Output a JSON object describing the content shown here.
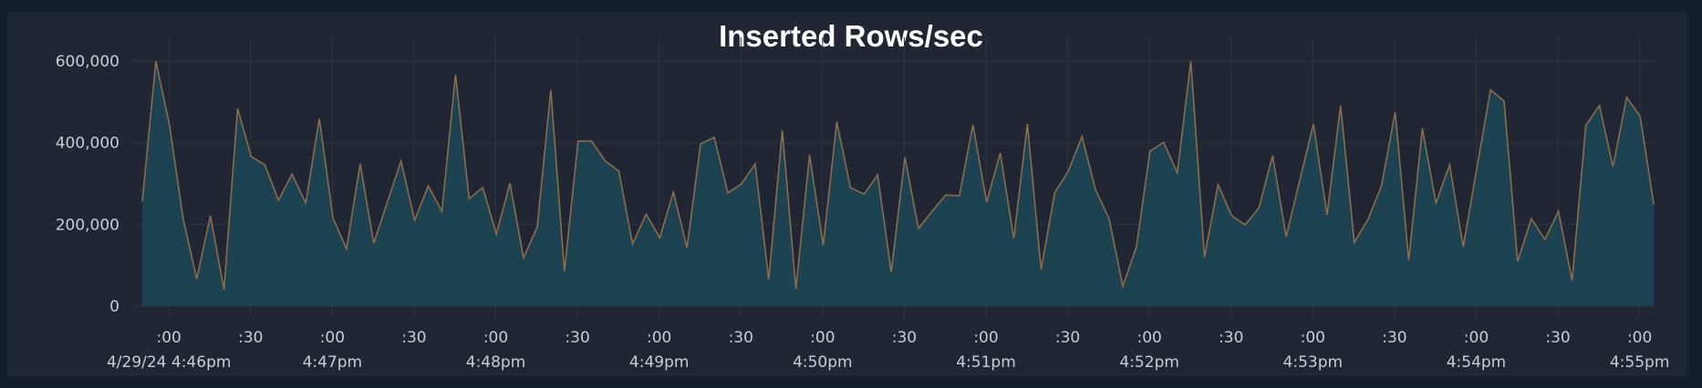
{
  "chart_data": {
    "type": "area",
    "title": "Inserted Rows/sec",
    "xlabel": "",
    "ylabel": "",
    "ylim": [
      0,
      600000
    ],
    "grid": true,
    "legend": "none",
    "y_ticks": [
      "0",
      "200,000",
      "400,000",
      "600,000"
    ],
    "y_tick_values": [
      0,
      200000,
      400000,
      600000
    ],
    "x_ticks": [
      {
        "label": ":00",
        "sub": "4/29/24 4:46pm"
      },
      {
        "label": ":30",
        "sub": ""
      },
      {
        "label": ":00",
        "sub": "4:47pm"
      },
      {
        "label": ":30",
        "sub": ""
      },
      {
        "label": ":00",
        "sub": "4:48pm"
      },
      {
        "label": ":30",
        "sub": ""
      },
      {
        "label": ":00",
        "sub": "4:49pm"
      },
      {
        "label": ":30",
        "sub": ""
      },
      {
        "label": ":00",
        "sub": "4:50pm"
      },
      {
        "label": ":30",
        "sub": ""
      },
      {
        "label": ":00",
        "sub": "4:51pm"
      },
      {
        "label": ":30",
        "sub": ""
      },
      {
        "label": ":00",
        "sub": "4:52pm"
      },
      {
        "label": ":30",
        "sub": ""
      },
      {
        "label": ":00",
        "sub": "4:53pm"
      },
      {
        "label": ":30",
        "sub": ""
      },
      {
        "label": ":00",
        "sub": "4:54pm"
      },
      {
        "label": ":30",
        "sub": ""
      },
      {
        "label": ":00",
        "sub": "4:55pm"
      }
    ],
    "x_start": "4:45:55pm",
    "x_interval_seconds": 5,
    "series": [
      {
        "name": "Inserted Rows/sec",
        "color_line": "#8a6d4a",
        "color_fill": "#1d4252",
        "values": [
          256000,
          600000,
          442000,
          214000,
          67000,
          221000,
          40000,
          484000,
          366000,
          346000,
          259000,
          323000,
          252000,
          459000,
          216000,
          140000,
          348000,
          154000,
          255000,
          355000,
          210000,
          294000,
          232000,
          567000,
          263000,
          290000,
          176000,
          301000,
          118000,
          194000,
          529000,
          85000,
          404000,
          404000,
          355000,
          330000,
          152000,
          225000,
          167000,
          279000,
          143000,
          397000,
          413000,
          277000,
          299000,
          348000,
          65000,
          430000,
          42000,
          370000,
          149000,
          451000,
          290000,
          274000,
          321000,
          83000,
          364000,
          190000,
          232000,
          272000,
          270000,
          444000,
          254000,
          375000,
          165000,
          446000,
          89000,
          277000,
          330000,
          415000,
          285000,
          214000,
          49000,
          145000,
          379000,
          401000,
          326000,
          600000,
          120000,
          297000,
          221000,
          199000,
          241000,
          368000,
          170000,
          308000,
          446000,
          223000,
          491000,
          156000,
          212000,
          294000,
          475000,
          112000,
          435000,
          252000,
          346000,
          145000,
          337000,
          529000,
          502000,
          109000,
          214000,
          163000,
          232000,
          62000,
          442000,
          491000,
          341000,
          511000,
          464000,
          248000
        ]
      }
    ]
  },
  "colors": {
    "page_bg": "#161d2c",
    "panel_bg": "#202633",
    "grid": "#2f3538",
    "text": "#c9ccd2",
    "title": "#ffffff"
  }
}
